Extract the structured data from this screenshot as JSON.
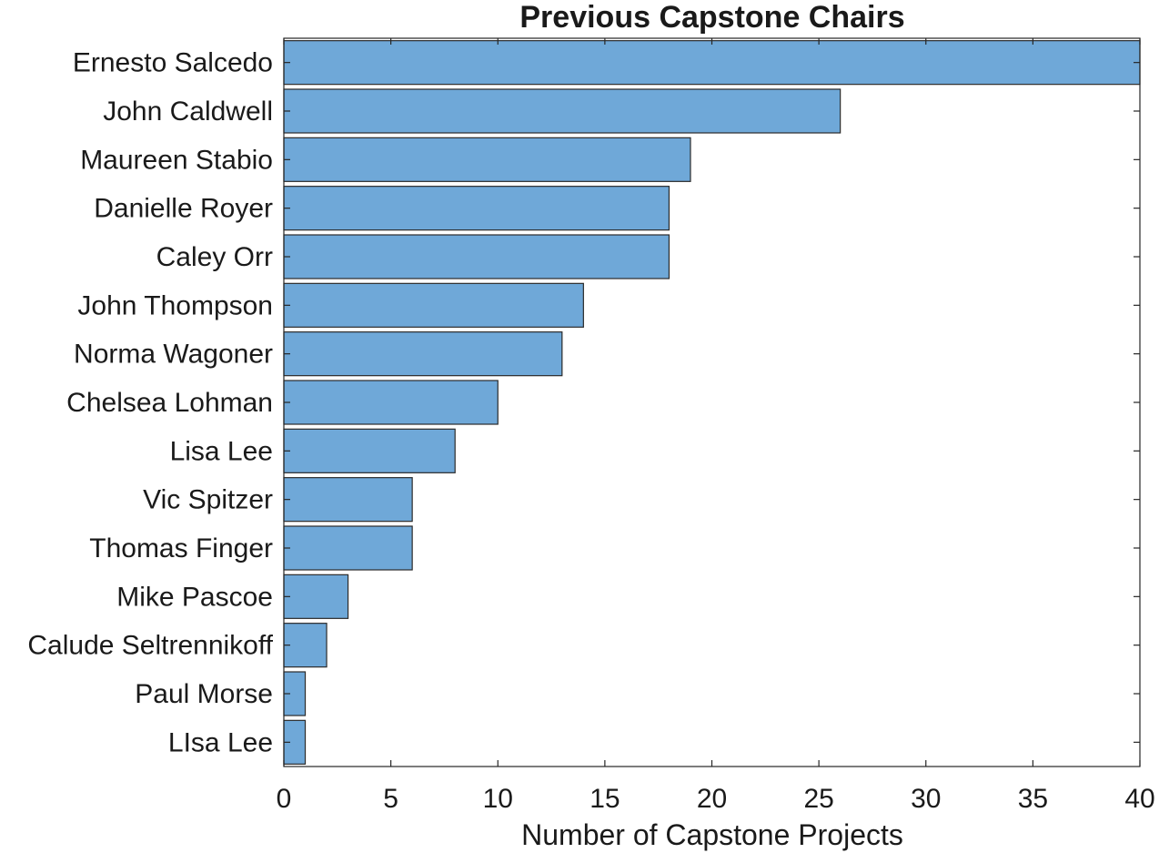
{
  "chart_data": {
    "type": "bar",
    "orientation": "horizontal",
    "title": "Previous Capstone Chairs",
    "xlabel": "Number of Capstone Projects",
    "ylabel": "",
    "xlim": [
      0,
      40
    ],
    "xticks": [
      0,
      5,
      10,
      15,
      20,
      25,
      30,
      35,
      40
    ],
    "categories": [
      "Ernesto Salcedo",
      "John Caldwell",
      "Maureen Stabio",
      "Danielle Royer",
      "Caley Orr",
      "John Thompson",
      "Norma Wagoner",
      "Chelsea Lohman",
      "Lisa Lee",
      "Vic Spitzer",
      "Thomas Finger",
      "Mike Pascoe",
      "Calude Seltrennikoff",
      "Paul Morse",
      "LIsa Lee"
    ],
    "values": [
      40,
      26,
      19,
      18,
      18,
      14,
      13,
      10,
      8,
      6,
      6,
      3,
      2,
      1,
      1
    ],
    "grid": false,
    "legend": "none",
    "colors": {
      "bar": "#6fa8d8",
      "bar_edge": "#2b2b2b",
      "axis": "#262626",
      "text": "#1a1a1a"
    }
  }
}
